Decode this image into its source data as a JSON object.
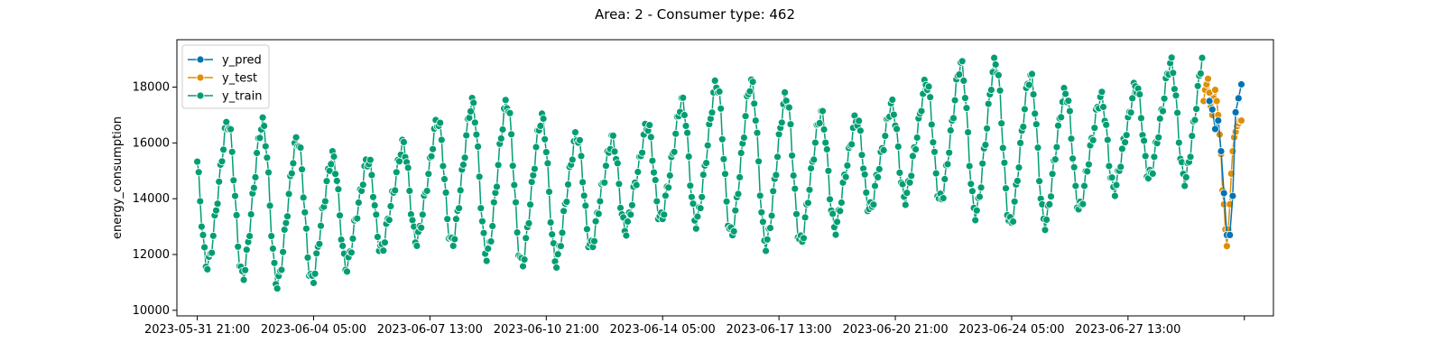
{
  "chart_data": {
    "type": "line",
    "title": "Area: 2 - Consumer type: 462",
    "xlabel": "",
    "ylabel": "energy_consumption",
    "x_tick_labels": [
      "2023-05-31 21:00",
      "2023-06-04 05:00",
      "2023-06-07 13:00",
      "2023-06-10 21:00",
      "2023-06-14 05:00",
      "2023-06-17 13:00",
      "2023-06-20 21:00",
      "2023-06-24 05:00",
      "2023-06-27 13:00",
      ""
    ],
    "x_tick_step_hours": 80,
    "y_ticks": [
      "10000",
      "12000",
      "14000",
      "16000",
      "18000"
    ],
    "ylim": [
      9800,
      19700
    ],
    "xlim_hours": [
      -14,
      740
    ],
    "legend_position": "top-left",
    "grid": false,
    "series": [
      {
        "name": "y_pred",
        "color": "#0173b2",
        "x_hours": [
          696,
          698,
          700,
          702,
          704,
          706,
          708,
          710,
          712,
          714,
          716,
          718
        ],
        "values": [
          17500,
          17200,
          16500,
          16800,
          15700,
          14200,
          12700,
          12700,
          14100,
          17100,
          17600,
          18100
        ]
      },
      {
        "name": "y_test",
        "color": "#de8f05",
        "x_hours": [
          692,
          693,
          694,
          695,
          696,
          697,
          698,
          699,
          700,
          701,
          702,
          703,
          704,
          705,
          706,
          707,
          708,
          709,
          710,
          711,
          712,
          713,
          714,
          715,
          716,
          717,
          718
        ],
        "values": [
          17500,
          17900,
          18100,
          18300,
          17800,
          17300,
          17000,
          17600,
          17900,
          17500,
          17000,
          16300,
          15600,
          14300,
          13800,
          12900,
          12300,
          12900,
          13800,
          14900,
          15700,
          16200,
          16400,
          16600,
          16700,
          16800,
          16800
        ]
      },
      {
        "name": "y_train",
        "color": "#029e73",
        "x_hours": [],
        "values": []
      }
    ],
    "annotations": []
  }
}
